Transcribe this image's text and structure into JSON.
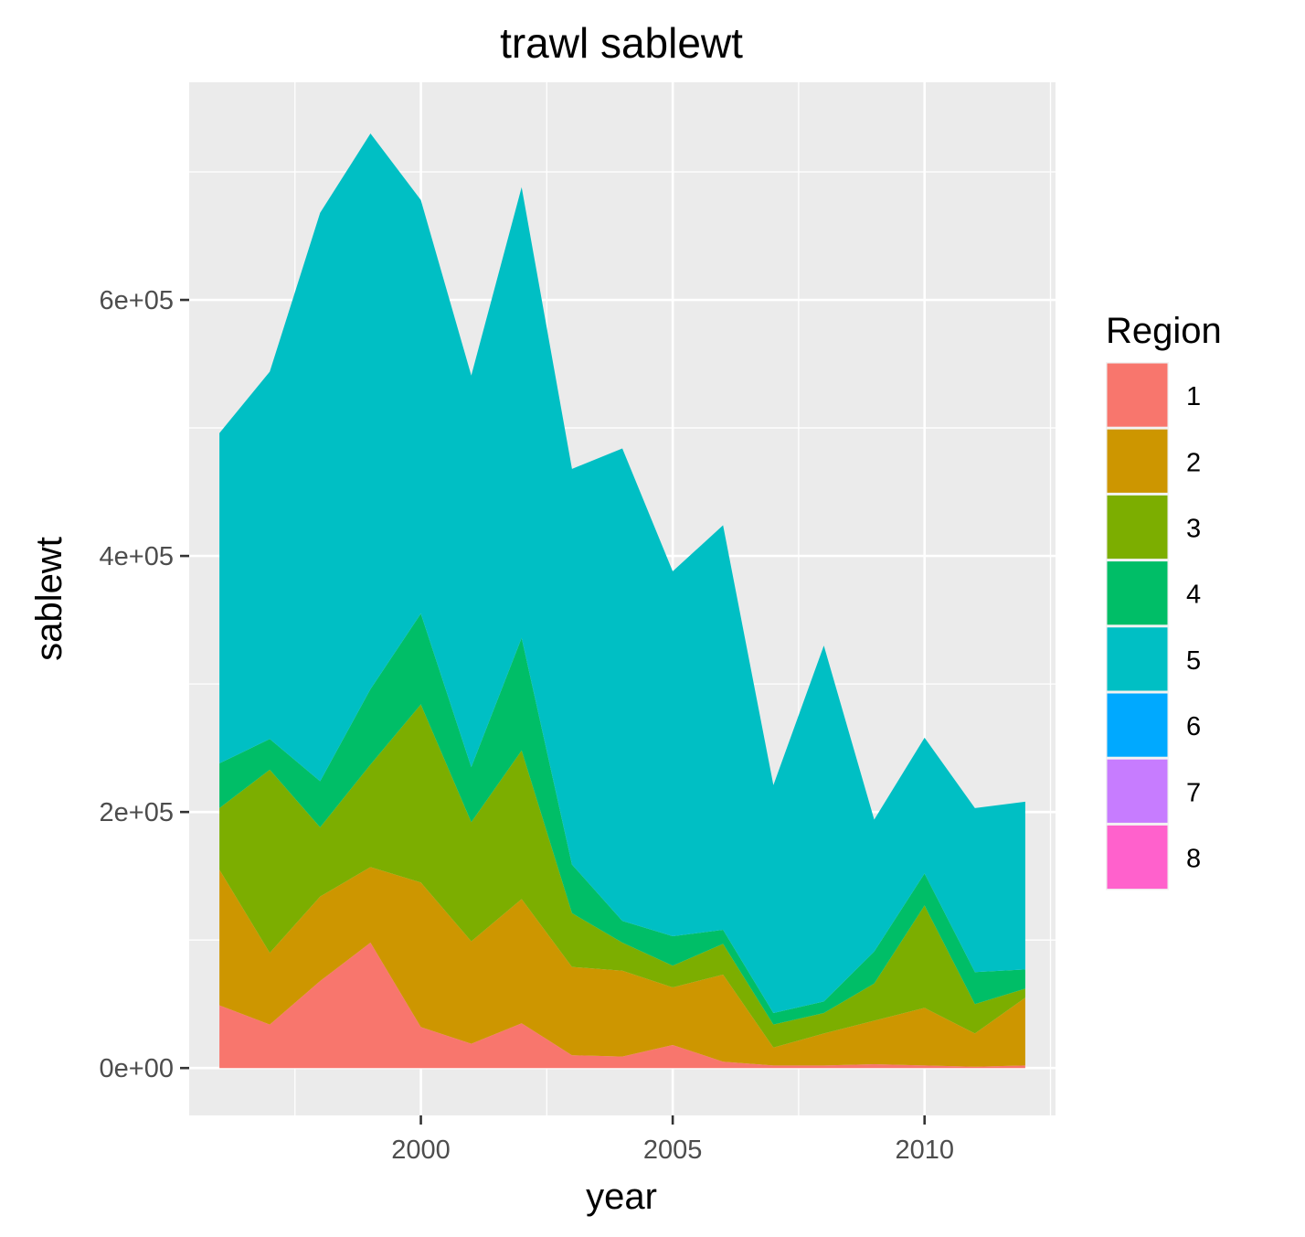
{
  "chart_data": {
    "type": "area",
    "stacked": true,
    "title": "trawl sablewt",
    "xlabel": "year",
    "ylabel": "sablewt",
    "xlim": [
      1995.4,
      2012.6
    ],
    "ylim": [
      -37000,
      770000
    ],
    "x_ticks": [
      2000,
      2005,
      2010
    ],
    "x_tick_labels": [
      "2000",
      "2005",
      "2010"
    ],
    "y_ticks": [
      0,
      200000,
      400000,
      600000
    ],
    "y_tick_labels": [
      "0e+00",
      "2e+05",
      "4e+05",
      "6e+05"
    ],
    "grid": true,
    "legend": {
      "title": "Region",
      "position": "right"
    },
    "x": [
      1996,
      1997,
      1998,
      1999,
      2000,
      2001,
      2002,
      2003,
      2004,
      2005,
      2006,
      2007,
      2008,
      2009,
      2010,
      2011,
      2012
    ],
    "series": [
      {
        "name": "1",
        "color": "#F8766D",
        "values": [
          49000,
          34000,
          68000,
          98000,
          32000,
          19000,
          35000,
          10000,
          9000,
          18000,
          5000,
          2000,
          2000,
          3000,
          2000,
          1000,
          2000
        ]
      },
      {
        "name": "2",
        "color": "#CD9600",
        "values": [
          106000,
          56000,
          66000,
          59000,
          113000,
          80000,
          97000,
          69000,
          67000,
          45000,
          68000,
          14000,
          25000,
          34000,
          45000,
          26000,
          53000
        ]
      },
      {
        "name": "3",
        "color": "#7CAE00",
        "values": [
          48000,
          143000,
          54000,
          80000,
          139000,
          93000,
          116000,
          42000,
          22000,
          17000,
          24000,
          18000,
          16000,
          29000,
          80000,
          23000,
          7000
        ]
      },
      {
        "name": "4",
        "color": "#00BE67",
        "values": [
          35000,
          24000,
          36000,
          59000,
          71000,
          43000,
          88000,
          38000,
          17000,
          23000,
          11000,
          9000,
          9000,
          25000,
          25000,
          25000,
          15000
        ]
      },
      {
        "name": "5",
        "color": "#00BFC4",
        "values": [
          258000,
          287000,
          444000,
          434000,
          323000,
          306000,
          352000,
          309000,
          369000,
          285000,
          316000,
          178000,
          278000,
          103000,
          106000,
          128000,
          131000
        ]
      },
      {
        "name": "6",
        "color": "#00A9FF",
        "values": [
          0,
          0,
          0,
          0,
          0,
          0,
          0,
          0,
          0,
          0,
          0,
          0,
          0,
          0,
          0,
          0,
          0
        ]
      },
      {
        "name": "7",
        "color": "#C77CFF",
        "values": [
          0,
          0,
          0,
          0,
          0,
          0,
          0,
          0,
          0,
          0,
          0,
          0,
          0,
          0,
          0,
          0,
          0
        ]
      },
      {
        "name": "8",
        "color": "#FF61CC",
        "values": [
          0,
          0,
          0,
          0,
          0,
          0,
          0,
          0,
          0,
          0,
          0,
          0,
          0,
          0,
          0,
          0,
          0
        ]
      }
    ]
  }
}
